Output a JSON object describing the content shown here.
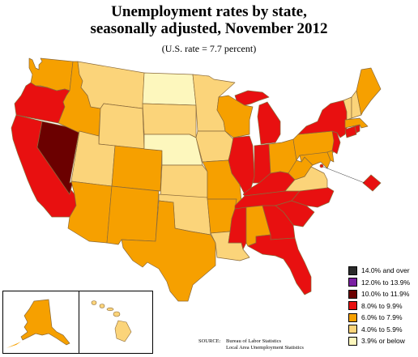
{
  "title_line1": "Unemployment rates by state,",
  "title_line2": "seasonally adjusted, November 2012",
  "subtitle": "(U.S. rate = 7.7 percent)",
  "colors": {
    "over14": "#2a2a2a",
    "r12_13": "#7a1fa2",
    "r10_11": "#6b0000",
    "r8_9": "#e81010",
    "r6_7": "#f6a000",
    "r4_5": "#fbd47a",
    "r3_below": "#fdf7bd",
    "border": "#8a6a3a"
  },
  "legend": [
    {
      "label": "14.0% and over",
      "color_key": "over14"
    },
    {
      "label": "12.0% to 13.9%",
      "color_key": "r12_13"
    },
    {
      "label": "10.0% to 11.9%",
      "color_key": "r10_11"
    },
    {
      "label": "8.0% to 9.9%",
      "color_key": "r8_9"
    },
    {
      "label": "6.0% to 7.9%",
      "color_key": "r6_7"
    },
    {
      "label": "4.0% to 5.9%",
      "color_key": "r4_5"
    },
    {
      "label": "3.9% or below",
      "color_key": "r3_below"
    }
  ],
  "source": {
    "label": "SOURCE:",
    "line1": "Bureau of Labor Statistics",
    "line2": "Local Area Unemployment Statistics"
  },
  "states": {
    "WA": "r6_7",
    "OR": "r8_9",
    "CA": "r8_9",
    "NV": "r10_11",
    "ID": "r6_7",
    "MT": "r4_5",
    "WY": "r4_5",
    "UT": "r4_5",
    "AZ": "r6_7",
    "CO": "r6_7",
    "NM": "r6_7",
    "ND": "r3_below",
    "SD": "r4_5",
    "NE": "r3_below",
    "KS": "r4_5",
    "OK": "r4_5",
    "TX": "r6_7",
    "MN": "r4_5",
    "IA": "r4_5",
    "MO": "r6_7",
    "AR": "r6_7",
    "LA": "r4_5",
    "WI": "r6_7",
    "IL": "r8_9",
    "MI": "r8_9",
    "IN": "r8_9",
    "OH": "r6_7",
    "KY": "r8_9",
    "TN": "r8_9",
    "MS": "r8_9",
    "AL": "r6_7",
    "GA": "r8_9",
    "FL": "r8_9",
    "SC": "r8_9",
    "NC": "r8_9",
    "VA": "r4_5",
    "WV": "r6_7",
    "PA": "r6_7",
    "NY": "r8_9",
    "NJ": "r8_9",
    "DE": "r6_7",
    "MD": "r6_7",
    "DC": "r8_9",
    "CT": "r8_9",
    "RI": "r8_9",
    "MA": "r6_7",
    "VT": "r4_5",
    "NH": "r4_5",
    "ME": "r6_7",
    "AK": "r6_7",
    "HI": "r4_5"
  }
}
